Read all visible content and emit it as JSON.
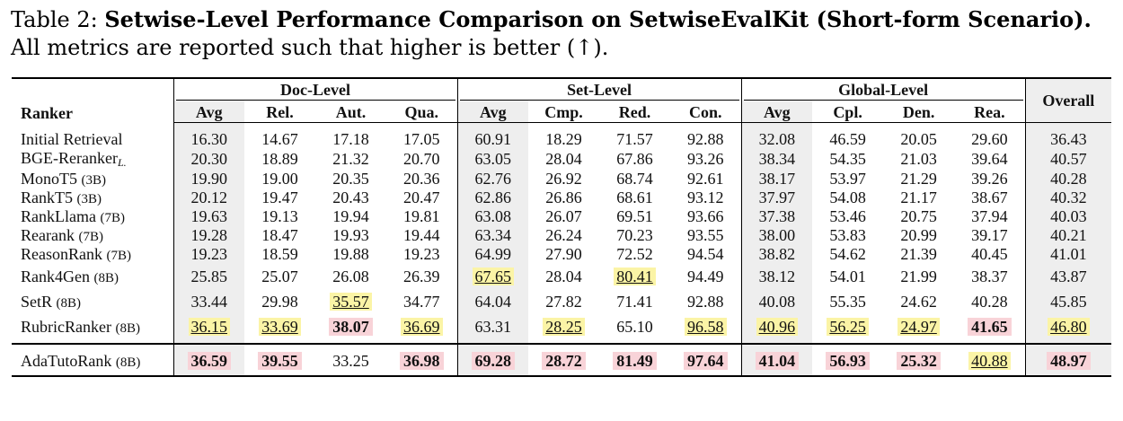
{
  "caption": {
    "label": "Table 2:",
    "title": "Setwise-Level Performance Comparison on SetwiseEvalKit (Short-form Scenario).",
    "note": "All metrics are reported such that higher is better (↑)."
  },
  "header": {
    "ranker": "Ranker",
    "groups": [
      "Doc-Level",
      "Set-Level",
      "Global-Level"
    ],
    "overall": "Overall",
    "cols": [
      "Avg",
      "Rel.",
      "Aut.",
      "Qua.",
      "Avg",
      "Cmp.",
      "Red.",
      "Con.",
      "Avg",
      "Cpl.",
      "Den.",
      "Rea."
    ]
  },
  "rows": [
    {
      "name": "Initial Retrieval",
      "size": "",
      "vals": [
        "16.30",
        "14.67",
        "17.18",
        "17.05",
        "60.91",
        "18.29",
        "71.57",
        "92.88",
        "32.08",
        "46.59",
        "20.05",
        "29.60",
        "36.43"
      ]
    },
    {
      "name": "BGE-Reranker",
      "size": "",
      "sub": "L.",
      "vals": [
        "20.30",
        "18.89",
        "21.32",
        "20.70",
        "63.05",
        "28.04",
        "67.86",
        "93.26",
        "38.34",
        "54.35",
        "21.03",
        "39.64",
        "40.57"
      ]
    },
    {
      "name": "MonoT5",
      "size": "(3B)",
      "vals": [
        "19.90",
        "19.00",
        "20.35",
        "20.36",
        "62.76",
        "26.92",
        "68.74",
        "92.61",
        "38.17",
        "53.97",
        "21.29",
        "39.26",
        "40.28"
      ]
    },
    {
      "name": "RankT5",
      "size": "(3B)",
      "vals": [
        "20.12",
        "19.47",
        "20.43",
        "20.47",
        "62.86",
        "26.86",
        "68.61",
        "93.12",
        "37.97",
        "54.08",
        "21.17",
        "38.67",
        "40.32"
      ]
    },
    {
      "name": "RankLlama",
      "size": "(7B)",
      "vals": [
        "19.63",
        "19.13",
        "19.94",
        "19.81",
        "63.08",
        "26.07",
        "69.51",
        "93.66",
        "37.38",
        "53.46",
        "20.75",
        "37.94",
        "40.03"
      ]
    },
    {
      "name": "Rearank",
      "size": "(7B)",
      "vals": [
        "19.28",
        "18.47",
        "19.93",
        "19.44",
        "63.34",
        "26.24",
        "70.23",
        "93.55",
        "38.00",
        "53.83",
        "20.99",
        "39.17",
        "40.21"
      ]
    },
    {
      "name": "ReasonRank",
      "size": "(7B)",
      "vals": [
        "19.23",
        "18.59",
        "19.88",
        "19.23",
        "64.99",
        "27.90",
        "72.52",
        "94.54",
        "38.82",
        "54.62",
        "21.39",
        "40.45",
        "41.01"
      ]
    },
    {
      "name": "Rank4Gen",
      "size": "(8B)",
      "vals": [
        "25.85",
        "25.07",
        "26.08",
        "26.39",
        "67.65",
        "28.04",
        "80.41",
        "94.49",
        "38.12",
        "54.01",
        "21.99",
        "38.37",
        "43.87"
      ]
    },
    {
      "name": "SetR",
      "size": "(8B)",
      "vals": [
        "33.44",
        "29.98",
        "35.57",
        "34.77",
        "64.04",
        "27.82",
        "71.41",
        "92.88",
        "40.08",
        "55.35",
        "24.62",
        "40.28",
        "45.85"
      ]
    },
    {
      "name": "RubricRanker",
      "size": "(8B)",
      "vals": [
        "36.15",
        "33.69",
        "38.07",
        "36.69",
        "63.31",
        "28.25",
        "65.10",
        "96.58",
        "40.96",
        "56.25",
        "24.97",
        "41.65",
        "46.80"
      ]
    },
    {
      "name": "AdaTutoRank",
      "size": "(8B)",
      "vals": [
        "36.59",
        "39.55",
        "33.25",
        "36.98",
        "69.28",
        "28.72",
        "81.49",
        "97.64",
        "41.04",
        "56.93",
        "25.32",
        "40.88",
        "48.97"
      ]
    }
  ]
}
